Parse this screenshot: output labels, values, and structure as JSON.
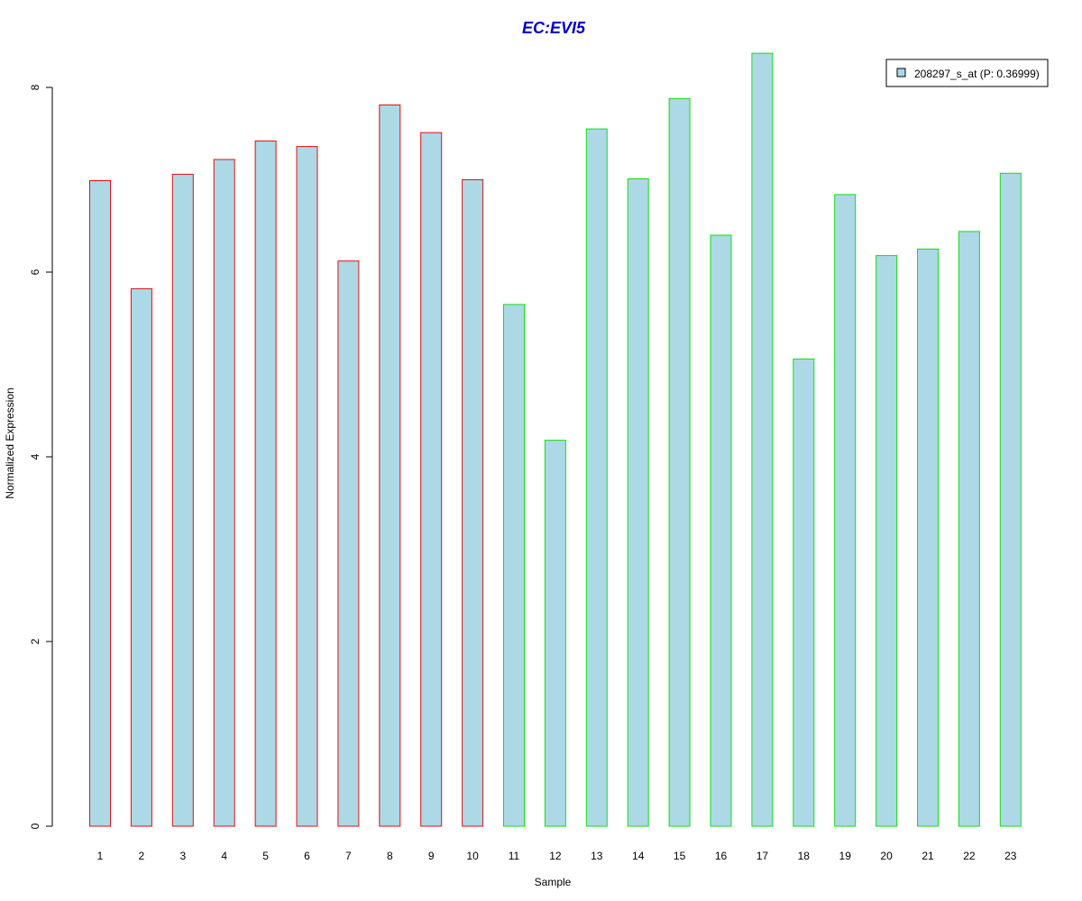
{
  "chart_data": {
    "type": "bar",
    "title": "EC:EVI5",
    "xlabel": "Sample",
    "ylabel": "Normalized Expression",
    "ylim": [
      0,
      8.4
    ],
    "yticks": [
      "0",
      "2",
      "4",
      "6",
      "8"
    ],
    "grid": false,
    "legend_position": "top-right",
    "categories": [
      "1",
      "2",
      "3",
      "4",
      "5",
      "6",
      "7",
      "8",
      "9",
      "10",
      "11",
      "12",
      "13",
      "14",
      "15",
      "16",
      "17",
      "18",
      "19",
      "20",
      "21",
      "22",
      "23"
    ],
    "series": [
      {
        "name": "208297_s_at (P: 0.36999)",
        "values": [
          6.99,
          5.82,
          7.06,
          7.22,
          7.42,
          7.36,
          6.12,
          7.81,
          7.51,
          7.0,
          5.65,
          4.18,
          7.55,
          7.01,
          7.88,
          6.4,
          8.37,
          5.06,
          6.84,
          6.18,
          6.25,
          6.44,
          7.07
        ]
      }
    ],
    "groups": [
      {
        "border_color": "#e01010",
        "count": 10
      },
      {
        "border_color": "#10e010",
        "count": 13
      }
    ],
    "colors": {
      "bar_fill": "#add8e6",
      "title": "#0000cc",
      "axis": "#000000"
    }
  }
}
